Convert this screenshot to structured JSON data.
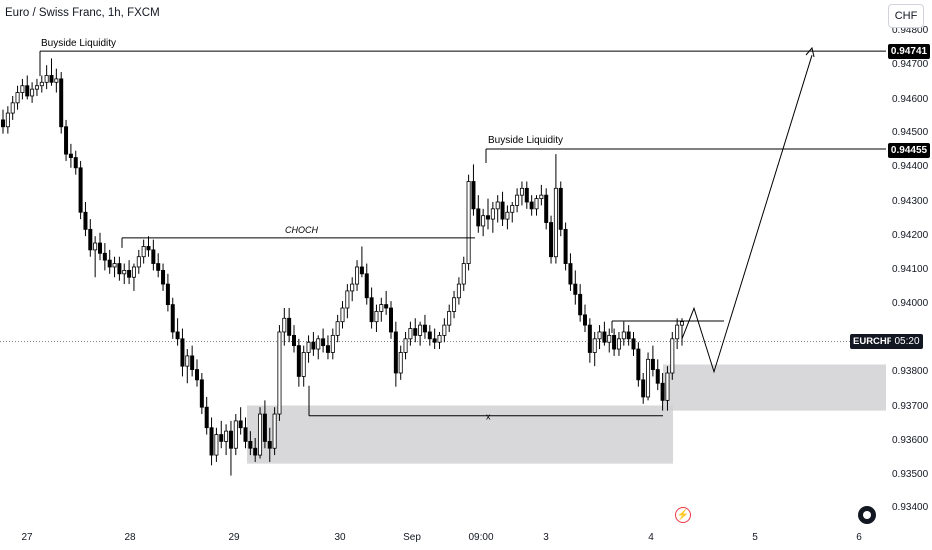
{
  "header": {
    "title": "Euro / Swiss Franc, 1h, FXCM",
    "currency": "CHF"
  },
  "symbol_tag": {
    "symbol": "EURCHF",
    "countdown": "05:20"
  },
  "icons": {
    "flash": "flash-icon",
    "logo": "tradingview-logo-icon"
  },
  "chart_data": {
    "type": "candlestick",
    "yticks": [
      "0.94800",
      "0.94700",
      "0.94600",
      "0.94500",
      "0.94400",
      "0.94300",
      "0.94200",
      "0.94100",
      "0.94000",
      "0.93800",
      "0.93700",
      "0.93600",
      "0.93500",
      "0.93400"
    ],
    "xticks": [
      "27",
      "28",
      "29",
      "30",
      "Sep",
      "09:00",
      "3",
      "4",
      "5",
      "6"
    ],
    "ylim": [
      0.934,
      0.9482
    ],
    "price_labels": [
      "0.94741",
      "0.94455"
    ],
    "colors": {
      "up": "#ffffff",
      "down": "#000000",
      "zone": "#d1d1d4",
      "line": "#000000"
    },
    "annotations": {
      "buyside_1": {
        "text": "Buyside Liquidity",
        "price": 0.94741,
        "from": "Aug 27 morning"
      },
      "buyside_2": {
        "text": "Buyside Liquidity",
        "price": 0.94455,
        "from": "Sep 2 09:00"
      },
      "choch": {
        "text": "CHOCH",
        "price": 0.94195
      },
      "x_mark": {
        "text": "x",
        "price": 0.93675
      }
    },
    "zones": [
      {
        "name": "demand-zone-1",
        "top": 0.93705,
        "bottom": 0.93535
      },
      {
        "name": "demand-zone-2",
        "top": 0.93825,
        "bottom": 0.9369
      }
    ],
    "projection": [
      0.9396,
      0.9383,
      0.94741
    ],
    "candles": [
      [
        0.9454,
        0.9457,
        0.945,
        0.9452
      ],
      [
        0.9452,
        0.9458,
        0.945,
        0.9456
      ],
      [
        0.9456,
        0.9461,
        0.9454,
        0.9459
      ],
      [
        0.9459,
        0.9464,
        0.9457,
        0.9462
      ],
      [
        0.9462,
        0.9466,
        0.946,
        0.9464
      ],
      [
        0.9464,
        0.9467,
        0.946,
        0.9461
      ],
      [
        0.9461,
        0.9465,
        0.9459,
        0.9463
      ],
      [
        0.9463,
        0.9466,
        0.9461,
        0.9464
      ],
      [
        0.9464,
        0.9467,
        0.9462,
        0.9465
      ],
      [
        0.9465,
        0.947,
        0.9463,
        0.9467
      ],
      [
        0.9467,
        0.9472,
        0.9464,
        0.9465
      ],
      [
        0.9465,
        0.9469,
        0.9462,
        0.9466
      ],
      [
        0.9466,
        0.9468,
        0.945,
        0.9452
      ],
      [
        0.9452,
        0.9454,
        0.9442,
        0.9444
      ],
      [
        0.9444,
        0.9447,
        0.944,
        0.9443
      ],
      [
        0.9443,
        0.9445,
        0.9438,
        0.944
      ],
      [
        0.944,
        0.9442,
        0.9425,
        0.9427
      ],
      [
        0.9427,
        0.943,
        0.942,
        0.9422
      ],
      [
        0.9422,
        0.9425,
        0.9414,
        0.9416
      ],
      [
        0.9416,
        0.942,
        0.9408,
        0.9418
      ],
      [
        0.9418,
        0.9421,
        0.9413,
        0.9415
      ],
      [
        0.9415,
        0.9418,
        0.941,
        0.9413
      ],
      [
        0.9413,
        0.9416,
        0.9409,
        0.9411
      ],
      [
        0.9411,
        0.9414,
        0.9408,
        0.9412
      ],
      [
        0.9412,
        0.9414,
        0.9407,
        0.9409
      ],
      [
        0.9409,
        0.9412,
        0.9406,
        0.941
      ],
      [
        0.941,
        0.9413,
        0.9406,
        0.9408
      ],
      [
        0.9408,
        0.9412,
        0.9404,
        0.9411
      ],
      [
        0.9411,
        0.9416,
        0.9409,
        0.9414
      ],
      [
        0.9414,
        0.9419,
        0.9412,
        0.9417
      ],
      [
        0.9417,
        0.942,
        0.9414,
        0.9416
      ],
      [
        0.9416,
        0.9419,
        0.941,
        0.9412
      ],
      [
        0.9412,
        0.9415,
        0.9408,
        0.941
      ],
      [
        0.941,
        0.9412,
        0.9404,
        0.9406
      ],
      [
        0.9406,
        0.9409,
        0.9398,
        0.94
      ],
      [
        0.94,
        0.9402,
        0.939,
        0.9392
      ],
      [
        0.9392,
        0.9396,
        0.9388,
        0.939
      ],
      [
        0.939,
        0.9393,
        0.9379,
        0.9382
      ],
      [
        0.9382,
        0.9387,
        0.9377,
        0.9385
      ],
      [
        0.9385,
        0.9388,
        0.9379,
        0.9381
      ],
      [
        0.9381,
        0.9384,
        0.9376,
        0.9378
      ],
      [
        0.9378,
        0.938,
        0.9368,
        0.937
      ],
      [
        0.937,
        0.9373,
        0.9362,
        0.9364
      ],
      [
        0.9364,
        0.9367,
        0.9353,
        0.9356
      ],
      [
        0.9356,
        0.9364,
        0.9354,
        0.9362
      ],
      [
        0.9362,
        0.9366,
        0.9358,
        0.936
      ],
      [
        0.936,
        0.9365,
        0.9356,
        0.9363
      ],
      [
        0.9363,
        0.9366,
        0.935,
        0.9358
      ],
      [
        0.9358,
        0.9368,
        0.9356,
        0.9366
      ],
      [
        0.9366,
        0.937,
        0.9362,
        0.9364
      ],
      [
        0.9364,
        0.9367,
        0.9358,
        0.936
      ],
      [
        0.936,
        0.9363,
        0.9356,
        0.9358
      ],
      [
        0.9358,
        0.9361,
        0.9354,
        0.9356
      ],
      [
        0.9356,
        0.937,
        0.9355,
        0.9368
      ],
      [
        0.9368,
        0.9372,
        0.9358,
        0.936
      ],
      [
        0.936,
        0.9364,
        0.9354,
        0.9358
      ],
      [
        0.9358,
        0.937,
        0.9356,
        0.9368
      ],
      [
        0.9368,
        0.9394,
        0.9366,
        0.9392
      ],
      [
        0.9392,
        0.9399,
        0.9388,
        0.9396
      ],
      [
        0.9396,
        0.9399,
        0.9389,
        0.9391
      ],
      [
        0.9391,
        0.9394,
        0.9386,
        0.9388
      ],
      [
        0.9388,
        0.939,
        0.9376,
        0.9379
      ],
      [
        0.9379,
        0.9388,
        0.9376,
        0.9386
      ],
      [
        0.9386,
        0.9391,
        0.9383,
        0.9389
      ],
      [
        0.9389,
        0.9392,
        0.9385,
        0.9387
      ],
      [
        0.9387,
        0.9391,
        0.9384,
        0.939
      ],
      [
        0.939,
        0.9393,
        0.9386,
        0.9388
      ],
      [
        0.9388,
        0.9391,
        0.9384,
        0.9386
      ],
      [
        0.9386,
        0.9393,
        0.9384,
        0.9391
      ],
      [
        0.9391,
        0.9397,
        0.9389,
        0.9395
      ],
      [
        0.9395,
        0.9401,
        0.9393,
        0.9399
      ],
      [
        0.9399,
        0.9406,
        0.9396,
        0.9404
      ],
      [
        0.9404,
        0.9408,
        0.9401,
        0.9406
      ],
      [
        0.9406,
        0.9413,
        0.9404,
        0.9411
      ],
      [
        0.9411,
        0.9417,
        0.9408,
        0.9409
      ],
      [
        0.9409,
        0.9412,
        0.94,
        0.9402
      ],
      [
        0.9402,
        0.9405,
        0.9393,
        0.9395
      ],
      [
        0.9395,
        0.94,
        0.9392,
        0.9398
      ],
      [
        0.9398,
        0.9402,
        0.9395,
        0.94
      ],
      [
        0.94,
        0.9404,
        0.9397,
        0.9399
      ],
      [
        0.9399,
        0.9401,
        0.939,
        0.9392
      ],
      [
        0.9392,
        0.9395,
        0.9376,
        0.938
      ],
      [
        0.938,
        0.9388,
        0.9378,
        0.9386
      ],
      [
        0.9386,
        0.9392,
        0.9384,
        0.939
      ],
      [
        0.939,
        0.9395,
        0.9388,
        0.9393
      ],
      [
        0.9393,
        0.9396,
        0.9389,
        0.9391
      ],
      [
        0.9391,
        0.9395,
        0.9388,
        0.9394
      ],
      [
        0.9394,
        0.9397,
        0.939,
        0.9392
      ],
      [
        0.9392,
        0.9394,
        0.9388,
        0.939
      ],
      [
        0.939,
        0.9393,
        0.9387,
        0.9389
      ],
      [
        0.9389,
        0.9392,
        0.9387,
        0.9391
      ],
      [
        0.9391,
        0.9396,
        0.9389,
        0.9394
      ],
      [
        0.9394,
        0.94,
        0.9392,
        0.9398
      ],
      [
        0.9398,
        0.9404,
        0.9396,
        0.9402
      ],
      [
        0.9402,
        0.9408,
        0.94,
        0.9406
      ],
      [
        0.9406,
        0.9414,
        0.9404,
        0.9412
      ],
      [
        0.9412,
        0.9438,
        0.941,
        0.9436
      ],
      [
        0.9436,
        0.9441,
        0.9426,
        0.9428
      ],
      [
        0.9428,
        0.9432,
        0.9421,
        0.9423
      ],
      [
        0.9423,
        0.9428,
        0.942,
        0.9426
      ],
      [
        0.9426,
        0.9431,
        0.9422,
        0.9425
      ],
      [
        0.9425,
        0.943,
        0.9421,
        0.9428
      ],
      [
        0.9428,
        0.9432,
        0.9424,
        0.943
      ],
      [
        0.943,
        0.9433,
        0.9423,
        0.9425
      ],
      [
        0.9425,
        0.9429,
        0.9422,
        0.9427
      ],
      [
        0.9427,
        0.943,
        0.9424,
        0.9429
      ],
      [
        0.9429,
        0.9434,
        0.9427,
        0.9432
      ],
      [
        0.9432,
        0.9436,
        0.9429,
        0.9434
      ],
      [
        0.9434,
        0.9436,
        0.9428,
        0.943
      ],
      [
        0.943,
        0.9432,
        0.9426,
        0.9428
      ],
      [
        0.9428,
        0.9432,
        0.9426,
        0.9431
      ],
      [
        0.9431,
        0.9435,
        0.9429,
        0.9432
      ],
      [
        0.9432,
        0.9434,
        0.9422,
        0.9424
      ],
      [
        0.9424,
        0.9426,
        0.9412,
        0.9414
      ],
      [
        0.9414,
        0.9444,
        0.9412,
        0.9434
      ],
      [
        0.9434,
        0.9436,
        0.942,
        0.9422
      ],
      [
        0.9422,
        0.9424,
        0.941,
        0.9412
      ],
      [
        0.9412,
        0.9415,
        0.9404,
        0.9406
      ],
      [
        0.9406,
        0.941,
        0.94,
        0.9403
      ],
      [
        0.9403,
        0.9406,
        0.9395,
        0.9397
      ],
      [
        0.9397,
        0.94,
        0.9392,
        0.9394
      ],
      [
        0.9394,
        0.9396,
        0.9383,
        0.9386
      ],
      [
        0.9386,
        0.9392,
        0.9382,
        0.939
      ],
      [
        0.939,
        0.9394,
        0.9387,
        0.9392
      ],
      [
        0.9392,
        0.9395,
        0.9388,
        0.9389
      ],
      [
        0.9389,
        0.9393,
        0.9386,
        0.9391
      ],
      [
        0.9391,
        0.9393,
        0.9385,
        0.9387
      ],
      [
        0.9387,
        0.9392,
        0.9385,
        0.939
      ],
      [
        0.939,
        0.9395,
        0.9388,
        0.9392
      ],
      [
        0.9392,
        0.9394,
        0.9388,
        0.939
      ],
      [
        0.939,
        0.9392,
        0.9385,
        0.9387
      ],
      [
        0.9387,
        0.9389,
        0.9376,
        0.9378
      ],
      [
        0.9378,
        0.938,
        0.9371,
        0.9373
      ],
      [
        0.9373,
        0.9386,
        0.9372,
        0.9384
      ],
      [
        0.9384,
        0.9388,
        0.9379,
        0.9381
      ],
      [
        0.9381,
        0.9384,
        0.9375,
        0.9377
      ],
      [
        0.9377,
        0.938,
        0.9369,
        0.9372
      ],
      [
        0.9372,
        0.9382,
        0.9369,
        0.938
      ],
      [
        0.938,
        0.9392,
        0.9378,
        0.939
      ],
      [
        0.939,
        0.9396,
        0.9387,
        0.9394
      ],
      [
        0.9394,
        0.9396,
        0.9388,
        0.9395
      ]
    ]
  }
}
